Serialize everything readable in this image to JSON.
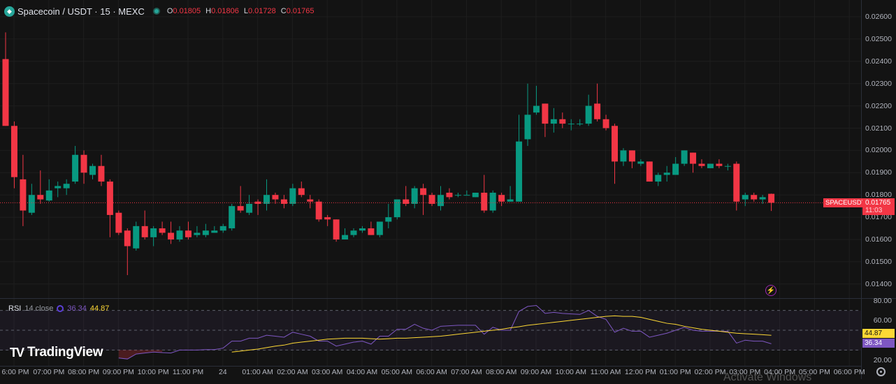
{
  "header": {
    "symbol": "Spacecoin / USDT · 15 · MEXC",
    "o_label": "O",
    "o": "0.01805",
    "h_label": "H",
    "h": "0.01806",
    "l_label": "L",
    "l": "0.01728",
    "c_label": "C",
    "c": "0.01765",
    "logo_icon": "spacecoin-diamond-icon",
    "status_icon": "market-open-dot"
  },
  "price_axis": {
    "labels": [
      "0.02600",
      "0.02500",
      "0.02400",
      "0.02300",
      "0.02200",
      "0.02100",
      "0.02000",
      "0.01900",
      "0.01800",
      "0.01700",
      "0.01600",
      "0.01500",
      "0.01400"
    ]
  },
  "current": {
    "ticker": "SPACEUSDT",
    "price": "0.01765",
    "countdown": "11:03"
  },
  "rsi": {
    "name": "RSI",
    "params": "14 close",
    "value": "36.34",
    "ma_value": "44.87",
    "axis_labels": [
      "80.00",
      "60.00",
      "20.00"
    ]
  },
  "time_axis": {
    "labels": [
      "6:00 PM",
      "07:00 PM",
      "08:00 PM",
      "09:00 PM",
      "10:00 PM",
      "11:00 PM",
      "24",
      "01:00 AM",
      "02:00 AM",
      "03:00 AM",
      "04:00 AM",
      "05:00 AM",
      "06:00 AM",
      "07:00 AM",
      "08:00 AM",
      "09:00 AM",
      "10:00 AM",
      "11:00 AM",
      "12:00 PM",
      "01:00 PM",
      "02:00 PM",
      "03:00 PM",
      "04:00 PM",
      "05:00 PM",
      "06:00 PM"
    ]
  },
  "branding": {
    "name": "TradingView"
  },
  "watermark": "Activate Windows",
  "colors": {
    "up": "#089981",
    "down": "#f23645",
    "rsi": "#7e57c2",
    "rsi_ma": "#fdd835",
    "bg": "#131313"
  },
  "chart_data": {
    "type": "candlestick",
    "interval": "15",
    "ylim": [
      0.0135,
      0.0265
    ],
    "ohlc": [
      [
        0.0241,
        0.0253,
        0.0211,
        0.0211
      ],
      [
        0.0211,
        0.0213,
        0.0183,
        0.0188
      ],
      [
        0.0187,
        0.0198,
        0.0166,
        0.0173
      ],
      [
        0.0172,
        0.0185,
        0.0171,
        0.018
      ],
      [
        0.018,
        0.0191,
        0.0176,
        0.0178
      ],
      [
        0.01775,
        0.0187,
        0.0177,
        0.0182
      ],
      [
        0.0183,
        0.0186,
        0.0179,
        0.0184
      ],
      [
        0.0183,
        0.0187,
        0.018,
        0.0185
      ],
      [
        0.0186,
        0.0202,
        0.0185,
        0.0198
      ],
      [
        0.0198,
        0.02,
        0.0185,
        0.019
      ],
      [
        0.0189,
        0.0194,
        0.0187,
        0.0193
      ],
      [
        0.0193,
        0.0198,
        0.0184,
        0.0186
      ],
      [
        0.0186,
        0.0187,
        0.0161,
        0.0171
      ],
      [
        0.0172,
        0.0173,
        0.0162,
        0.0163
      ],
      [
        0.0164,
        0.0165,
        0.0144,
        0.0157
      ],
      [
        0.0156,
        0.0168,
        0.0155,
        0.0166
      ],
      [
        0.0166,
        0.0173,
        0.016,
        0.0161
      ],
      [
        0.0161,
        0.0166,
        0.0157,
        0.0165
      ],
      [
        0.0165,
        0.0168,
        0.0162,
        0.0163
      ],
      [
        0.0163,
        0.0168,
        0.0158,
        0.016
      ],
      [
        0.016,
        0.0166,
        0.0159,
        0.0164
      ],
      [
        0.0164,
        0.0168,
        0.016,
        0.0161
      ],
      [
        0.0162,
        0.0166,
        0.0161,
        0.0163
      ],
      [
        0.0162,
        0.0167,
        0.0161,
        0.0164
      ],
      [
        0.0163,
        0.0166,
        0.0163,
        0.0164
      ],
      [
        0.0164,
        0.0167,
        0.0163,
        0.0166
      ],
      [
        0.0165,
        0.0176,
        0.0164,
        0.0175
      ],
      [
        0.0175,
        0.0184,
        0.0172,
        0.0173
      ],
      [
        0.0172,
        0.018,
        0.0171,
        0.0176
      ],
      [
        0.0177,
        0.0178,
        0.0171,
        0.0176
      ],
      [
        0.0176,
        0.0187,
        0.0173,
        0.018
      ],
      [
        0.018,
        0.0181,
        0.0176,
        0.0178
      ],
      [
        0.0178,
        0.018,
        0.0174,
        0.0176
      ],
      [
        0.0176,
        0.0185,
        0.0175,
        0.0183
      ],
      [
        0.0183,
        0.0186,
        0.0179,
        0.018
      ],
      [
        0.0178,
        0.018,
        0.0174,
        0.0177
      ],
      [
        0.0177,
        0.0178,
        0.0168,
        0.0169
      ],
      [
        0.017,
        0.0171,
        0.0166,
        0.0169
      ],
      [
        0.0169,
        0.0169,
        0.0159,
        0.016
      ],
      [
        0.016,
        0.0165,
        0.016,
        0.0162
      ],
      [
        0.0162,
        0.0165,
        0.0161,
        0.0164
      ],
      [
        0.0164,
        0.0166,
        0.0163,
        0.0165
      ],
      [
        0.0165,
        0.0168,
        0.0162,
        0.0162
      ],
      [
        0.0162,
        0.0168,
        0.0161,
        0.0168
      ],
      [
        0.0168,
        0.0176,
        0.0165,
        0.017
      ],
      [
        0.017,
        0.0178,
        0.0169,
        0.0178
      ],
      [
        0.0178,
        0.0184,
        0.0175,
        0.0176
      ],
      [
        0.0176,
        0.0184,
        0.0174,
        0.0183
      ],
      [
        0.0183,
        0.0185,
        0.0171,
        0.018
      ],
      [
        0.018,
        0.0181,
        0.0175,
        0.0176
      ],
      [
        0.0175,
        0.0184,
        0.0173,
        0.018
      ],
      [
        0.0181,
        0.0183,
        0.0178,
        0.0179
      ],
      [
        0.018,
        0.0181,
        0.0179,
        0.018
      ],
      [
        0.018,
        0.0182,
        0.018,
        0.018
      ],
      [
        0.0179,
        0.0181,
        0.0179,
        0.0181
      ],
      [
        0.0181,
        0.0189,
        0.0172,
        0.0173
      ],
      [
        0.0173,
        0.0182,
        0.0172,
        0.0181
      ],
      [
        0.018,
        0.0181,
        0.0175,
        0.0177
      ],
      [
        0.0177,
        0.0184,
        0.0177,
        0.0178
      ],
      [
        0.0177,
        0.0216,
        0.0177,
        0.0204
      ],
      [
        0.0205,
        0.023,
        0.0202,
        0.0216
      ],
      [
        0.0217,
        0.0229,
        0.0216,
        0.022
      ],
      [
        0.0221,
        0.0221,
        0.0206,
        0.0212
      ],
      [
        0.0212,
        0.0219,
        0.0208,
        0.0214
      ],
      [
        0.0214,
        0.0217,
        0.021,
        0.0212
      ],
      [
        0.0212,
        0.0214,
        0.0209,
        0.0212
      ],
      [
        0.0212,
        0.0214,
        0.0211,
        0.0212
      ],
      [
        0.0212,
        0.0225,
        0.0211,
        0.022
      ],
      [
        0.0221,
        0.023,
        0.0213,
        0.0214
      ],
      [
        0.0214,
        0.0216,
        0.0209,
        0.021
      ],
      [
        0.0211,
        0.0212,
        0.0185,
        0.0195
      ],
      [
        0.0195,
        0.0201,
        0.0193,
        0.02
      ],
      [
        0.02,
        0.02,
        0.0192,
        0.0195
      ],
      [
        0.0194,
        0.0196,
        0.0193,
        0.0195
      ],
      [
        0.0195,
        0.0195,
        0.0186,
        0.0186
      ],
      [
        0.0186,
        0.019,
        0.0184,
        0.0189
      ],
      [
        0.0189,
        0.0193,
        0.0186,
        0.019
      ],
      [
        0.0189,
        0.0197,
        0.0189,
        0.0194
      ],
      [
        0.0194,
        0.02,
        0.0193,
        0.02
      ],
      [
        0.0199,
        0.0199,
        0.019,
        0.0194
      ],
      [
        0.0194,
        0.0196,
        0.0192,
        0.0193
      ],
      [
        0.0192,
        0.0194,
        0.0192,
        0.0194
      ],
      [
        0.0194,
        0.0196,
        0.0192,
        0.0193
      ],
      [
        0.0193,
        0.0194,
        0.0191,
        0.0193
      ],
      [
        0.0194,
        0.0195,
        0.0173,
        0.0177
      ],
      [
        0.0178,
        0.0181,
        0.0175,
        0.018
      ],
      [
        0.018,
        0.0181,
        0.0177,
        0.0178
      ],
      [
        0.0178,
        0.018,
        0.0176,
        0.0179
      ],
      [
        0.01805,
        0.01806,
        0.01728,
        0.01765
      ]
    ],
    "rsi": {
      "ylim": [
        15,
        85
      ],
      "levels": [
        70,
        50,
        30
      ],
      "start_index": 13,
      "values": [
        22,
        21,
        26,
        27,
        28,
        27.5,
        27,
        30,
        30,
        30,
        30.5,
        30.5,
        32,
        39,
        39,
        42,
        42,
        45,
        44,
        43,
        48,
        46,
        44,
        39,
        39,
        34,
        36,
        38,
        39,
        36,
        44,
        44,
        51,
        51,
        56,
        52,
        50,
        54,
        54.5,
        55,
        55,
        55,
        46,
        53,
        50,
        50,
        69,
        74,
        75,
        67,
        68,
        67,
        66.5,
        66,
        70,
        64,
        61,
        48,
        52,
        49,
        49,
        43,
        45,
        47,
        50,
        53,
        50,
        49,
        49,
        49,
        49,
        37,
        40,
        39,
        39,
        36.34
      ],
      "ma_start_index": 26,
      "ma_values": [
        28,
        29,
        30,
        31,
        32.5,
        34,
        35,
        37,
        38,
        39,
        40,
        41,
        41.5,
        42,
        42,
        42,
        41.5,
        41,
        41.5,
        42,
        42,
        42.5,
        43,
        43.5,
        44,
        45,
        46,
        47,
        48,
        49,
        50,
        51,
        52.5,
        53.5,
        55,
        56,
        57,
        58,
        59,
        60,
        61,
        62,
        63,
        64,
        64.5,
        64,
        64,
        63,
        61,
        59,
        57,
        56,
        54,
        52.5,
        51,
        50,
        49,
        48,
        47,
        46.5,
        46,
        45.5,
        44.87
      ]
    }
  }
}
